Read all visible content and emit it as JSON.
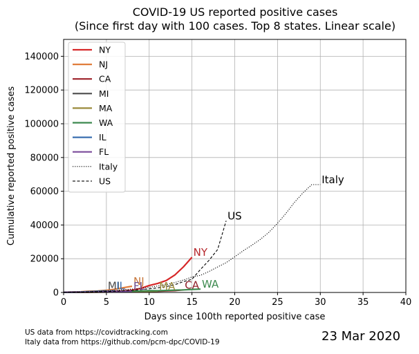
{
  "chart_data": {
    "type": "line",
    "title_lines": [
      "COVID-19 US reported positive cases",
      "(Since first day with 100 cases. Top 8 states. Linear scale)"
    ],
    "xlabel": "Days since 100th reported positive case",
    "ylabel": "Cumulative reported positive cases",
    "xlim": [
      0,
      40
    ],
    "ylim": [
      0,
      150000
    ],
    "x_ticks": [
      0,
      5,
      10,
      15,
      20,
      25,
      30,
      35,
      40
    ],
    "y_ticks": [
      0,
      20000,
      40000,
      60000,
      80000,
      100000,
      120000,
      140000
    ],
    "grid": true,
    "legend_position": "top-left",
    "series": [
      {
        "name": "NY",
        "color": "#d62728",
        "style": "solid",
        "label_color": "#b5262b",
        "x": [
          0,
          1,
          2,
          3,
          4,
          5,
          6,
          7,
          8,
          9,
          10,
          11,
          12,
          13,
          14,
          15
        ],
        "y": [
          105,
          142,
          173,
          216,
          421,
          524,
          729,
          950,
          1374,
          2382,
          4152,
          5365,
          7102,
          10356,
          15168,
          20875
        ]
      },
      {
        "name": "NJ",
        "color": "#e07b39",
        "style": "solid",
        "label_color": "#c7763a",
        "x": [
          0,
          1,
          2,
          3,
          4,
          5,
          6,
          7,
          8
        ],
        "y": [
          178,
          267,
          427,
          742,
          890,
          1327,
          1914,
          2844,
          3675
        ]
      },
      {
        "name": "CA",
        "color": "#9b1f27",
        "style": "solid",
        "label_color": "#8f1f2a",
        "x": [
          0,
          1,
          2,
          3,
          4,
          5,
          6,
          7,
          8,
          9,
          10,
          11,
          12,
          13,
          14
        ],
        "y": [
          114,
          133,
          157,
          179,
          202,
          252,
          293,
          335,
          392,
          483,
          611,
          698,
          903,
          1063,
          1536
        ]
      },
      {
        "name": "MI",
        "color": "#4a4a4a",
        "style": "solid",
        "label_color": "#4a4a4a",
        "x": [
          0,
          1,
          2,
          3,
          4,
          5
        ],
        "y": [
          110,
          250,
          336,
          549,
          787,
          1035
        ]
      },
      {
        "name": "MA",
        "color": "#9a8a3a",
        "style": "solid",
        "label_color": "#9a8a3a",
        "x": [
          0,
          1,
          2,
          3,
          4,
          5,
          6,
          7,
          8,
          9,
          10,
          11
        ],
        "y": [
          108,
          123,
          138,
          164,
          197,
          218,
          256,
          328,
          413,
          525,
          646,
          777
        ]
      },
      {
        "name": "WA",
        "color": "#3d8a4f",
        "style": "solid",
        "label_color": "#3d8a4f",
        "x": [
          0,
          1,
          2,
          3,
          4,
          5,
          6,
          7,
          8,
          9,
          10,
          11,
          12,
          13,
          14,
          15,
          16
        ],
        "y": [
          102,
          122,
          162,
          267,
          366,
          442,
          568,
          642,
          769,
          904,
          1076,
          1014,
          1187,
          1376,
          1524,
          1793,
          1996
        ]
      },
      {
        "name": "IL",
        "color": "#3a6fb0",
        "style": "solid",
        "label_color": "#3a6fb0",
        "x": [
          0,
          1,
          2,
          3,
          4,
          5,
          6
        ],
        "y": [
          105,
          160,
          288,
          422,
          585,
          753,
          1049
        ]
      },
      {
        "name": "FL",
        "color": "#7a4a9a",
        "style": "solid",
        "label_color": "#6a4a8a",
        "x": [
          0,
          1,
          2,
          3,
          4,
          5,
          6,
          7,
          8
        ],
        "y": [
          105,
          122,
          160,
          216,
          314,
          417,
          563,
          658,
          830
        ]
      },
      {
        "name": "Italy",
        "color": "#000000",
        "style": "dotted",
        "label_color": "#000000",
        "x": [
          0,
          1,
          2,
          3,
          4,
          5,
          6,
          7,
          8,
          9,
          10,
          11,
          12,
          13,
          14,
          15,
          16,
          17,
          18,
          19,
          20,
          21,
          22,
          23,
          24,
          25,
          26,
          27,
          28,
          29,
          30
        ],
        "y": [
          155,
          229,
          322,
          453,
          655,
          888,
          1128,
          1694,
          2036,
          2502,
          3089,
          3858,
          4636,
          5883,
          7375,
          9172,
          10149,
          12462,
          15113,
          17660,
          21157,
          24747,
          27980,
          31506,
          35713,
          41035,
          47021,
          53578,
          59138,
          63927,
          63927
        ]
      },
      {
        "name": "US",
        "color": "#000000",
        "style": "dashed",
        "label_color": "#000000",
        "x": [
          0,
          1,
          2,
          3,
          4,
          5,
          6,
          7,
          8,
          9,
          10,
          11,
          12,
          13,
          14,
          15,
          16,
          17,
          18,
          19
        ],
        "y": [
          105,
          148,
          213,
          338,
          445,
          572,
          717,
          1010,
          1267,
          1663,
          2179,
          2727,
          3499,
          4632,
          6421,
          7786,
          13680,
          19101,
          25493,
          42500
        ]
      }
    ]
  },
  "footer": {
    "source_line1": "US data from https://covidtracking.com",
    "source_line2": "Italy data from https://github.com/pcm-dpc/COVID-19",
    "date": "23 Mar 2020"
  }
}
